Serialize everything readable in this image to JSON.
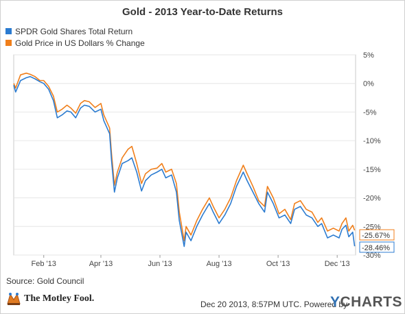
{
  "title": "Gold - 2013 Year-to-Date Returns",
  "legend": [
    {
      "label": "SPDR Gold Shares Total Return",
      "color": "#2b7bd0"
    },
    {
      "label": "Gold Price in US Dollars % Change",
      "color": "#f07f1b"
    }
  ],
  "source": "Source: Gold Council",
  "footer": {
    "timestamp": "Dec 20 2013, 8:57PM UTC. Powered by",
    "brand_y": "Y",
    "brand_rest": "CHARTS",
    "logo_text": "The Motley Fool."
  },
  "chart_data": {
    "type": "line",
    "title": "Gold - 2013 Year-to-Date Returns",
    "ylim": [
      -30,
      5
    ],
    "y_ticks": [
      "5%",
      "0%",
      "-5%",
      "-10%",
      "-15%",
      "-20%",
      "-25%",
      "-30%"
    ],
    "x_ticks": [
      "Feb '13",
      "Apr '13",
      "Jun '13",
      "Aug '13",
      "Oct '13",
      "Dec '13"
    ],
    "end_labels": [
      "-25.67%",
      "-28.46%"
    ],
    "series": [
      {
        "name": "SPDR Gold Shares Total Return",
        "color": "#2b7bd0",
        "x": [
          "2013-01-01",
          "2013-01-03",
          "2013-01-08",
          "2013-01-14",
          "2013-01-18",
          "2013-01-23",
          "2013-01-28",
          "2013-02-01",
          "2013-02-06",
          "2013-02-11",
          "2013-02-15",
          "2013-02-20",
          "2013-02-25",
          "2013-03-01",
          "2013-03-06",
          "2013-03-11",
          "2013-03-15",
          "2013-03-20",
          "2013-03-26",
          "2013-04-01",
          "2013-04-04",
          "2013-04-10",
          "2013-04-12",
          "2013-04-15",
          "2013-04-18",
          "2013-04-23",
          "2013-04-29",
          "2013-05-03",
          "2013-05-08",
          "2013-05-13",
          "2013-05-17",
          "2013-05-23",
          "2013-05-29",
          "2013-06-03",
          "2013-06-07",
          "2013-06-13",
          "2013-06-18",
          "2013-06-21",
          "2013-06-26",
          "2013-06-28",
          "2013-07-03",
          "2013-07-09",
          "2013-07-15",
          "2013-07-22",
          "2013-07-26",
          "2013-08-01",
          "2013-08-07",
          "2013-08-13",
          "2013-08-19",
          "2013-08-26",
          "2013-08-30",
          "2013-09-05",
          "2013-09-11",
          "2013-09-17",
          "2013-09-20",
          "2013-09-26",
          "2013-10-02",
          "2013-10-08",
          "2013-10-14",
          "2013-10-18",
          "2013-10-24",
          "2013-10-30",
          "2013-11-05",
          "2013-11-11",
          "2013-11-15",
          "2013-11-21",
          "2013-11-27",
          "2013-12-03",
          "2013-12-06",
          "2013-12-10",
          "2013-12-13",
          "2013-12-17",
          "2013-12-19"
        ],
        "values": [
          -0.3,
          -1.5,
          0.5,
          1.0,
          1.2,
          0.8,
          0.3,
          0.0,
          -1.0,
          -3.0,
          -6.0,
          -5.5,
          -4.8,
          -5.0,
          -6.0,
          -4.3,
          -3.8,
          -4.0,
          -5.0,
          -4.5,
          -6.5,
          -8.8,
          -13.5,
          -19.0,
          -16.5,
          -14.0,
          -13.5,
          -13.0,
          -15.5,
          -18.8,
          -17.0,
          -16.0,
          -15.5,
          -15.0,
          -16.5,
          -16.0,
          -19.0,
          -24.0,
          -28.5,
          -26.0,
          -27.5,
          -25.0,
          -23.0,
          -21.0,
          -22.5,
          -24.5,
          -23.0,
          -21.0,
          -18.0,
          -15.5,
          -17.0,
          -19.0,
          -21.0,
          -22.5,
          -19.0,
          -21.0,
          -23.5,
          -23.0,
          -24.5,
          -22.0,
          -21.5,
          -23.0,
          -23.5,
          -25.0,
          -24.5,
          -27.0,
          -26.5,
          -27.0,
          -25.5,
          -24.8,
          -26.8,
          -26.0,
          -28.46
        ]
      },
      {
        "name": "Gold Price in US Dollars % Change",
        "color": "#f07f1b",
        "x": [
          "2013-01-01",
          "2013-01-03",
          "2013-01-08",
          "2013-01-14",
          "2013-01-18",
          "2013-01-23",
          "2013-01-28",
          "2013-02-01",
          "2013-02-06",
          "2013-02-11",
          "2013-02-15",
          "2013-02-20",
          "2013-02-25",
          "2013-03-01",
          "2013-03-06",
          "2013-03-11",
          "2013-03-15",
          "2013-03-20",
          "2013-03-26",
          "2013-04-01",
          "2013-04-04",
          "2013-04-10",
          "2013-04-12",
          "2013-04-15",
          "2013-04-18",
          "2013-04-23",
          "2013-04-29",
          "2013-05-03",
          "2013-05-08",
          "2013-05-13",
          "2013-05-17",
          "2013-05-23",
          "2013-05-29",
          "2013-06-03",
          "2013-06-07",
          "2013-06-13",
          "2013-06-18",
          "2013-06-21",
          "2013-06-26",
          "2013-06-28",
          "2013-07-03",
          "2013-07-09",
          "2013-07-15",
          "2013-07-22",
          "2013-07-26",
          "2013-08-01",
          "2013-08-07",
          "2013-08-13",
          "2013-08-19",
          "2013-08-26",
          "2013-08-30",
          "2013-09-05",
          "2013-09-11",
          "2013-09-17",
          "2013-09-20",
          "2013-09-26",
          "2013-10-02",
          "2013-10-08",
          "2013-10-14",
          "2013-10-18",
          "2013-10-24",
          "2013-10-30",
          "2013-11-05",
          "2013-11-11",
          "2013-11-15",
          "2013-11-21",
          "2013-11-27",
          "2013-12-03",
          "2013-12-06",
          "2013-12-10",
          "2013-12-13",
          "2013-12-17",
          "2013-12-19"
        ],
        "values": [
          0.0,
          -0.8,
          1.5,
          1.8,
          1.6,
          1.2,
          0.5,
          0.5,
          -0.5,
          -2.2,
          -5.0,
          -4.5,
          -3.8,
          -4.3,
          -5.2,
          -3.5,
          -3.0,
          -3.2,
          -4.2,
          -3.5,
          -5.5,
          -7.8,
          -12.3,
          -17.8,
          -15.5,
          -13.0,
          -11.5,
          -11.0,
          -14.0,
          -17.5,
          -15.8,
          -15.0,
          -14.8,
          -14.0,
          -15.5,
          -15.0,
          -17.5,
          -22.5,
          -27.5,
          -25.0,
          -26.5,
          -24.0,
          -22.0,
          -20.0,
          -21.5,
          -23.5,
          -22.0,
          -20.0,
          -17.0,
          -14.3,
          -15.8,
          -18.0,
          -20.5,
          -21.5,
          -18.0,
          -20.0,
          -22.8,
          -22.0,
          -23.8,
          -21.0,
          -20.5,
          -22.0,
          -22.5,
          -24.3,
          -23.5,
          -25.8,
          -25.3,
          -25.8,
          -24.5,
          -23.5,
          -25.8,
          -24.8,
          -25.67
        ]
      }
    ]
  }
}
